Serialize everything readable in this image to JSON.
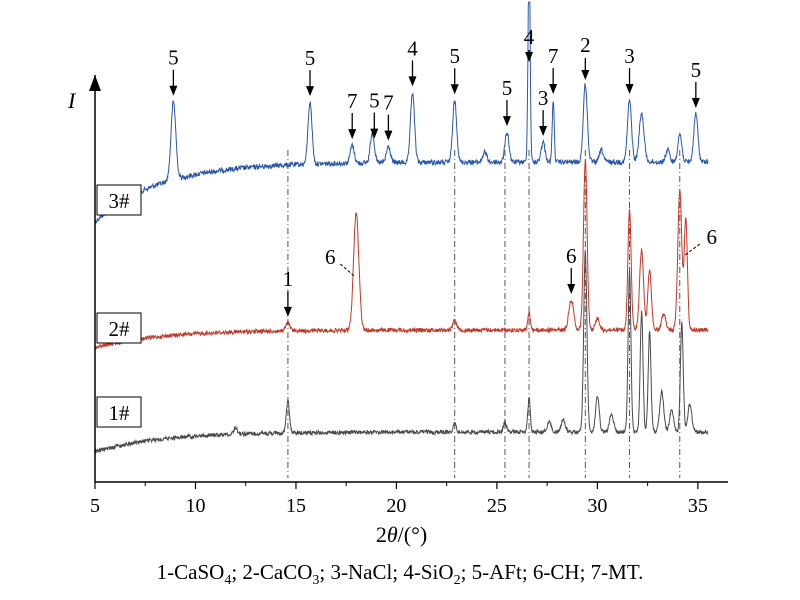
{
  "chart_data": {
    "type": "line",
    "title": "",
    "xlabel_parts": [
      "2",
      "θ",
      "/(°)"
    ],
    "ylabel": "I",
    "xlim": [
      5,
      36.5
    ],
    "xticks": [
      5,
      10,
      15,
      20,
      25,
      30,
      35
    ],
    "grid": false,
    "legend": "none",
    "series": [
      {
        "name": "3#",
        "color": "#2b57a8",
        "base": 0.0,
        "rise": 60,
        "noise": 2.5,
        "peaks": [
          [
            8.9,
            78,
            0.12
          ],
          [
            15.7,
            62,
            0.1
          ],
          [
            17.8,
            18,
            0.1
          ],
          [
            18.8,
            30,
            0.1
          ],
          [
            19.6,
            16,
            0.1
          ],
          [
            20.8,
            70,
            0.1
          ],
          [
            22.9,
            62,
            0.1
          ],
          [
            24.4,
            10,
            0.1
          ],
          [
            25.5,
            30,
            0.1
          ],
          [
            26.6,
            220,
            0.05
          ],
          [
            27.3,
            20,
            0.1
          ],
          [
            27.8,
            62,
            0.05
          ],
          [
            29.4,
            78,
            0.1
          ],
          [
            30.2,
            12,
            0.1
          ],
          [
            31.6,
            62,
            0.1
          ],
          [
            32.2,
            48,
            0.12
          ],
          [
            33.5,
            12,
            0.1
          ],
          [
            34.1,
            28,
            0.1
          ],
          [
            34.9,
            48,
            0.1
          ]
        ]
      },
      {
        "name": "2#",
        "color": "#c0392b",
        "base": 0.0,
        "rise": 18,
        "noise": 2.0,
        "peaks": [
          [
            14.6,
            8,
            0.1
          ],
          [
            18.0,
            118,
            0.13
          ],
          [
            22.9,
            10,
            0.1
          ],
          [
            26.6,
            18,
            0.06
          ],
          [
            28.7,
            30,
            0.12
          ],
          [
            29.4,
            170,
            0.09
          ],
          [
            30.0,
            12,
            0.1
          ],
          [
            31.6,
            120,
            0.08
          ],
          [
            32.2,
            80,
            0.1
          ],
          [
            32.6,
            60,
            0.09
          ],
          [
            33.3,
            16,
            0.1
          ],
          [
            34.1,
            140,
            0.1
          ],
          [
            34.4,
            110,
            0.08
          ]
        ]
      },
      {
        "name": "1#",
        "color": "#4a4a4a",
        "base": 0.0,
        "rise": 20,
        "noise": 2.0,
        "peaks": [
          [
            12.0,
            6,
            0.1
          ],
          [
            14.6,
            32,
            0.08
          ],
          [
            22.9,
            8,
            0.08
          ],
          [
            25.4,
            10,
            0.08
          ],
          [
            26.6,
            34,
            0.06
          ],
          [
            27.6,
            10,
            0.1
          ],
          [
            28.3,
            12,
            0.1
          ],
          [
            29.4,
            180,
            0.08
          ],
          [
            30.0,
            35,
            0.09
          ],
          [
            30.7,
            18,
            0.1
          ],
          [
            31.6,
            160,
            0.07
          ],
          [
            32.2,
            120,
            0.07
          ],
          [
            32.6,
            100,
            0.07
          ],
          [
            33.2,
            40,
            0.1
          ],
          [
            33.7,
            22,
            0.1
          ],
          [
            34.2,
            110,
            0.07
          ],
          [
            34.6,
            28,
            0.1
          ]
        ]
      }
    ],
    "sample_labels": [
      "3#",
      "2#",
      "1#"
    ],
    "reference_lines": [
      14.6,
      22.9,
      25.4,
      26.6,
      29.4,
      31.6,
      34.1
    ],
    "peak_annotations": [
      {
        "label": "5",
        "x": 8.9,
        "series": "3#"
      },
      {
        "label": "5",
        "x": 15.7,
        "series": "3#"
      },
      {
        "label": "7",
        "x": 17.8,
        "series": "3#"
      },
      {
        "label": "5",
        "x": 18.9,
        "series": "3#"
      },
      {
        "label": "7",
        "x": 19.6,
        "series": "3#"
      },
      {
        "label": "4",
        "x": 20.8,
        "series": "3#"
      },
      {
        "label": "5",
        "x": 22.9,
        "series": "3#"
      },
      {
        "label": "5",
        "x": 25.5,
        "series": "3#"
      },
      {
        "label": "4",
        "x": 26.6,
        "series": "3#"
      },
      {
        "label": "3",
        "x": 27.3,
        "series": "3#"
      },
      {
        "label": "7",
        "x": 27.8,
        "series": "3#"
      },
      {
        "label": "2",
        "x": 29.4,
        "series": "3#"
      },
      {
        "label": "3",
        "x": 31.6,
        "series": "3#"
      },
      {
        "label": "5",
        "x": 34.9,
        "series": "3#"
      },
      {
        "label": "6",
        "x": 18.0,
        "series": "2#"
      },
      {
        "label": "6",
        "x": 28.7,
        "series": "2#"
      },
      {
        "label": "6",
        "x": 34.2,
        "series": "2#"
      },
      {
        "label": "1",
        "x": 14.6,
        "series": "2#"
      }
    ],
    "caption": [
      {
        "t": "1-CaSO"
      },
      {
        "sub": "4"
      },
      {
        "t": "; 2-CaCO"
      },
      {
        "sub": "3"
      },
      {
        "t": "; 3-NaCl; 4-SiO"
      },
      {
        "sub": "2"
      },
      {
        "t": "; 5-AFt; 6-CH; 7-MT."
      }
    ]
  }
}
